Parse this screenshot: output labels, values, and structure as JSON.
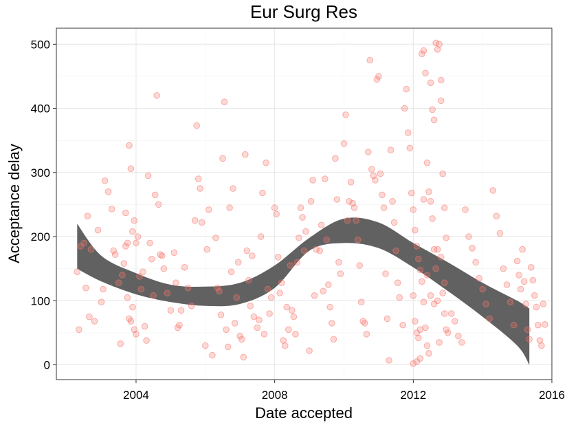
{
  "chart_data": {
    "type": "scatter",
    "title": "Eur Surg Res",
    "xlabel": "Date accepted",
    "ylabel": "Acceptance delay",
    "xlim": [
      2001.7,
      2016.0
    ],
    "ylim": [
      -23,
      525
    ],
    "xticks": [
      2004,
      2008,
      2012,
      2016
    ],
    "yticks": [
      0,
      100,
      200,
      300,
      400,
      500
    ],
    "grid": true,
    "point_color": "#f8766d",
    "band_color": "#595959",
    "series": [
      {
        "values": [
          [
            2002.3,
            145
          ],
          [
            2002.35,
            55
          ],
          [
            2002.4,
            185
          ],
          [
            2002.5,
            190
          ],
          [
            2002.55,
            120
          ],
          [
            2002.6,
            232
          ],
          [
            2002.65,
            75
          ],
          [
            2002.7,
            180
          ],
          [
            2002.8,
            68
          ],
          [
            2002.9,
            210
          ],
          [
            2003.0,
            98
          ],
          [
            2003.05,
            118
          ],
          [
            2003.1,
            287
          ],
          [
            2003.2,
            270
          ],
          [
            2003.3,
            243
          ],
          [
            2003.35,
            178
          ],
          [
            2003.4,
            172
          ],
          [
            2003.5,
            128
          ],
          [
            2003.55,
            33
          ],
          [
            2003.6,
            140
          ],
          [
            2003.7,
            237
          ],
          [
            2003.75,
            105
          ],
          [
            2003.8,
            72
          ],
          [
            2003.85,
            68
          ],
          [
            2003.9,
            208
          ],
          [
            2003.95,
            225
          ],
          [
            2004.0,
            190
          ],
          [
            2004.05,
            200
          ],
          [
            2003.65,
            158
          ],
          [
            2003.7,
            185
          ],
          [
            2003.75,
            190
          ],
          [
            2003.8,
            342
          ],
          [
            2003.85,
            306
          ],
          [
            2003.9,
            90
          ],
          [
            2003.95,
            55
          ],
          [
            2004.0,
            48
          ],
          [
            2004.1,
            138
          ],
          [
            2004.15,
            118
          ],
          [
            2004.2,
            145
          ],
          [
            2004.25,
            60
          ],
          [
            2004.3,
            38
          ],
          [
            2004.35,
            295
          ],
          [
            2004.4,
            190
          ],
          [
            2004.45,
            165
          ],
          [
            2004.5,
            108
          ],
          [
            2004.55,
            265
          ],
          [
            2004.6,
            420
          ],
          [
            2004.65,
            250
          ],
          [
            2004.7,
            172
          ],
          [
            2004.75,
            170
          ],
          [
            2004.8,
            150
          ],
          [
            2004.9,
            112
          ],
          [
            2005.0,
            85
          ],
          [
            2005.1,
            175
          ],
          [
            2005.15,
            128
          ],
          [
            2005.2,
            58
          ],
          [
            2005.25,
            62
          ],
          [
            2005.3,
            85
          ],
          [
            2005.4,
            152
          ],
          [
            2005.5,
            120
          ],
          [
            2005.6,
            92
          ],
          [
            2005.7,
            225
          ],
          [
            2005.75,
            373
          ],
          [
            2005.8,
            290
          ],
          [
            2005.85,
            275
          ],
          [
            2005.9,
            222
          ],
          [
            2006.0,
            30
          ],
          [
            2006.05,
            180
          ],
          [
            2006.1,
            242
          ],
          [
            2006.2,
            15
          ],
          [
            2006.3,
            198
          ],
          [
            2006.35,
            120
          ],
          [
            2006.4,
            115
          ],
          [
            2006.45,
            78
          ],
          [
            2006.5,
            322
          ],
          [
            2006.55,
            410
          ],
          [
            2006.6,
            55
          ],
          [
            2006.65,
            28
          ],
          [
            2006.7,
            245
          ],
          [
            2006.75,
            145
          ],
          [
            2006.8,
            275
          ],
          [
            2006.85,
            65
          ],
          [
            2006.9,
            105
          ],
          [
            2006.95,
            160
          ],
          [
            2007.0,
            45
          ],
          [
            2007.05,
            40
          ],
          [
            2007.1,
            12
          ],
          [
            2007.15,
            328
          ],
          [
            2007.2,
            178
          ],
          [
            2007.25,
            132
          ],
          [
            2007.3,
            92
          ],
          [
            2007.35,
            170
          ],
          [
            2007.4,
            75
          ],
          [
            2007.5,
            58
          ],
          [
            2007.55,
            70
          ],
          [
            2007.6,
            200
          ],
          [
            2007.65,
            268
          ],
          [
            2007.7,
            48
          ],
          [
            2007.75,
            315
          ],
          [
            2007.8,
            118
          ],
          [
            2007.85,
            80
          ],
          [
            2007.9,
            105
          ],
          [
            2008.0,
            245
          ],
          [
            2008.05,
            235
          ],
          [
            2008.1,
            168
          ],
          [
            2008.15,
            112
          ],
          [
            2008.2,
            128
          ],
          [
            2008.25,
            38
          ],
          [
            2008.3,
            30
          ],
          [
            2008.35,
            90
          ],
          [
            2008.4,
            55
          ],
          [
            2008.45,
            155
          ],
          [
            2008.5,
            85
          ],
          [
            2008.55,
            75
          ],
          [
            2008.6,
            48
          ],
          [
            2008.65,
            160
          ],
          [
            2008.7,
            198
          ],
          [
            2008.75,
            245
          ],
          [
            2008.8,
            230
          ],
          [
            2008.85,
            178
          ],
          [
            2008.9,
            208
          ],
          [
            2009.0,
            22
          ],
          [
            2009.05,
            255
          ],
          [
            2009.1,
            288
          ],
          [
            2009.15,
            108
          ],
          [
            2009.2,
            180
          ],
          [
            2009.3,
            178
          ],
          [
            2009.35,
            218
          ],
          [
            2009.4,
            115
          ],
          [
            2009.45,
            290
          ],
          [
            2009.5,
            195
          ],
          [
            2009.55,
            125
          ],
          [
            2009.6,
            90
          ],
          [
            2009.65,
            65
          ],
          [
            2009.7,
            40
          ],
          [
            2009.75,
            322
          ],
          [
            2009.8,
            258
          ],
          [
            2009.85,
            160
          ],
          [
            2009.9,
            142
          ],
          [
            2010.0,
            345
          ],
          [
            2010.05,
            390
          ],
          [
            2010.1,
            225
          ],
          [
            2010.15,
            255
          ],
          [
            2010.2,
            285
          ],
          [
            2010.25,
            252
          ],
          [
            2010.3,
            245
          ],
          [
            2010.35,
            225
          ],
          [
            2010.4,
            195
          ],
          [
            2010.45,
            155
          ],
          [
            2010.5,
            98
          ],
          [
            2010.55,
            68
          ],
          [
            2010.6,
            65
          ],
          [
            2010.65,
            48
          ],
          [
            2010.7,
            332
          ],
          [
            2010.75,
            475
          ],
          [
            2010.8,
            305
          ],
          [
            2010.85,
            295
          ],
          [
            2010.9,
            288
          ],
          [
            2010.95,
            445
          ],
          [
            2011.0,
            450
          ],
          [
            2011.05,
            298
          ],
          [
            2011.1,
            265
          ],
          [
            2011.15,
            245
          ],
          [
            2011.2,
            142
          ],
          [
            2011.25,
            72
          ],
          [
            2011.3,
            7
          ],
          [
            2011.35,
            335
          ],
          [
            2011.4,
            255
          ],
          [
            2011.45,
            222
          ],
          [
            2011.5,
            178
          ],
          [
            2011.55,
            128
          ],
          [
            2011.6,
            105
          ],
          [
            2011.7,
            62
          ],
          [
            2011.75,
            400
          ],
          [
            2011.8,
            430
          ],
          [
            2011.85,
            362
          ],
          [
            2011.9,
            338
          ],
          [
            2011.95,
            268
          ],
          [
            2012.0,
            242
          ],
          [
            2012.05,
            210
          ],
          [
            2012.1,
            185
          ],
          [
            2012.15,
            165
          ],
          [
            2012.2,
            148
          ],
          [
            2012.25,
            130
          ],
          [
            2012.3,
            98
          ],
          [
            2012.35,
            58
          ],
          [
            2012.4,
            30
          ],
          [
            2012.45,
            18
          ],
          [
            2012.5,
            440
          ],
          [
            2012.55,
            398
          ],
          [
            2012.6,
            382
          ],
          [
            2012.65,
            502
          ],
          [
            2012.7,
            492
          ],
          [
            2012.75,
            500
          ],
          [
            2012.8,
            412
          ],
          [
            2012.85,
            298
          ],
          [
            2012.9,
            245
          ],
          [
            2012.95,
            198
          ],
          [
            2012.0,
            108
          ],
          [
            2012.05,
            68
          ],
          [
            2012.1,
            50
          ],
          [
            2012.15,
            42
          ],
          [
            2012.2,
            55
          ],
          [
            2012.25,
            485
          ],
          [
            2012.3,
            490
          ],
          [
            2012.35,
            455
          ],
          [
            2012.4,
            315
          ],
          [
            2012.45,
            270
          ],
          [
            2012.5,
            255
          ],
          [
            2012.55,
            228
          ],
          [
            2012.6,
            180
          ],
          [
            2012.65,
            150
          ],
          [
            2012.7,
            100
          ],
          [
            2012.75,
            35
          ],
          [
            2012.8,
            444
          ],
          [
            2012.85,
            112
          ],
          [
            2012.9,
            80
          ],
          [
            2012.95,
            55
          ],
          [
            2012.0,
            2
          ],
          [
            2012.1,
            5
          ],
          [
            2012.2,
            10
          ],
          [
            2012.3,
            258
          ],
          [
            2012.4,
            140
          ],
          [
            2012.5,
            108
          ],
          [
            2012.6,
            95
          ],
          [
            2012.7,
            180
          ],
          [
            2012.8,
            168
          ],
          [
            2012.9,
            128
          ],
          [
            2013.0,
            50
          ],
          [
            2013.1,
            80
          ],
          [
            2013.2,
            68
          ],
          [
            2013.3,
            45
          ],
          [
            2013.4,
            35
          ],
          [
            2013.5,
            242
          ],
          [
            2013.6,
            200
          ],
          [
            2013.7,
            182
          ],
          [
            2013.8,
            160
          ],
          [
            2013.9,
            135
          ],
          [
            2014.0,
            118
          ],
          [
            2014.1,
            95
          ],
          [
            2014.2,
            72
          ],
          [
            2014.3,
            272
          ],
          [
            2014.4,
            232
          ],
          [
            2014.5,
            205
          ],
          [
            2014.6,
            150
          ],
          [
            2014.7,
            125
          ],
          [
            2014.8,
            98
          ],
          [
            2014.9,
            62
          ],
          [
            2015.0,
            162
          ],
          [
            2015.05,
            140
          ],
          [
            2015.1,
            118
          ],
          [
            2015.15,
            180
          ],
          [
            2015.2,
            130
          ],
          [
            2015.25,
            95
          ],
          [
            2015.3,
            55
          ],
          [
            2015.35,
            40
          ],
          [
            2015.4,
            152
          ],
          [
            2015.45,
            132
          ],
          [
            2015.5,
            108
          ],
          [
            2015.55,
            90
          ],
          [
            2015.6,
            62
          ],
          [
            2015.65,
            38
          ],
          [
            2015.7,
            30
          ],
          [
            2015.75,
            95
          ],
          [
            2015.8,
            63
          ]
        ]
      }
    ],
    "smooth_band": {
      "x": [
        2002.3,
        2003.0,
        2004.0,
        2005.0,
        2006.0,
        2007.0,
        2008.0,
        2009.0,
        2010.0,
        2011.0,
        2012.0,
        2013.0,
        2014.0,
        2015.0,
        2015.35
      ],
      "upper": [
        220,
        170,
        143,
        125,
        122,
        128,
        155,
        198,
        228,
        222,
        190,
        160,
        128,
        100,
        88
      ],
      "lower": [
        150,
        130,
        110,
        98,
        92,
        95,
        120,
        178,
        190,
        182,
        152,
        115,
        75,
        30,
        0
      ]
    }
  }
}
